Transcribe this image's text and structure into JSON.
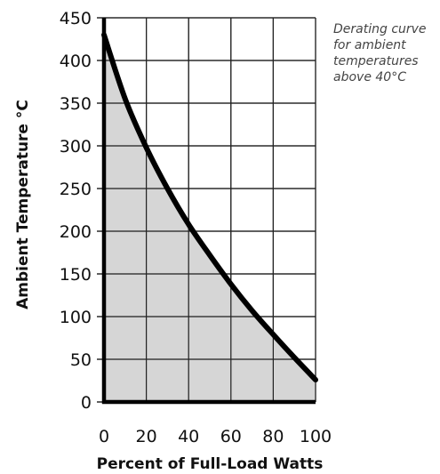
{
  "chart_data": {
    "type": "area",
    "title": "",
    "xlabel": "Percent of Full-Load Watts",
    "ylabel": "Ambient Temperature °C",
    "xlim": [
      0,
      100
    ],
    "ylim": [
      0,
      450
    ],
    "x_ticks": [
      "0",
      "20",
      "40",
      "60",
      "80",
      "100"
    ],
    "y_ticks": [
      "450",
      "400",
      "350",
      "300",
      "250",
      "200",
      "150",
      "100",
      "50",
      "0"
    ],
    "grid": true,
    "annotation": [
      "Derating curve",
      "for ambient",
      "temperatures",
      "above 40°C"
    ],
    "series": [
      {
        "x": [
          0,
          10,
          20,
          30,
          40,
          50,
          60,
          70,
          80,
          90,
          100
        ],
        "y": [
          430,
          355,
          298,
          250,
          208,
          172,
          138,
          107,
          79,
          52,
          26
        ]
      }
    ],
    "colors": {
      "fill": "#cfcfcf",
      "curve": "#000000",
      "grid": "#222222"
    }
  }
}
